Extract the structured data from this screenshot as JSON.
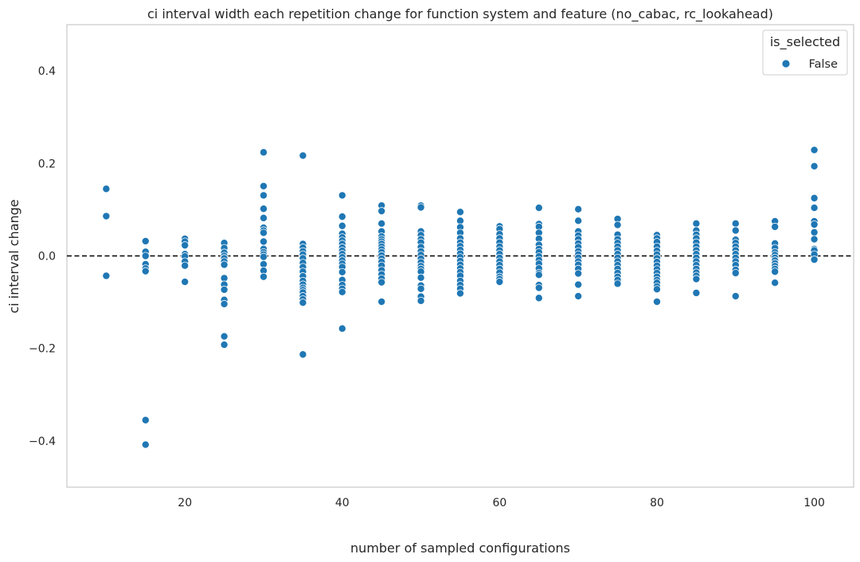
{
  "chart_data": {
    "type": "scatter",
    "title": "ci interval width each repetition change for function system and feature (no_cabac, rc_lookahead)",
    "xlabel": "number of sampled configurations",
    "ylabel": "ci interval change",
    "xlim": [
      5,
      105
    ],
    "ylim": [
      -0.5,
      0.5
    ],
    "xticks": [
      20,
      40,
      60,
      80,
      100
    ],
    "yticks": [
      -0.4,
      -0.2,
      0.0,
      0.2,
      0.4
    ],
    "xtick_labels": [
      "20",
      "40",
      "60",
      "80",
      "100"
    ],
    "ytick_labels": [
      "−0.4",
      "−0.2",
      "0.0",
      "0.2",
      "0.4"
    ],
    "grid": false,
    "reference_line": {
      "y": 0.0,
      "style": "dashed",
      "color": "#000000"
    },
    "legend": {
      "title": "is_selected",
      "placement": "top-right",
      "entries": [
        "False"
      ]
    },
    "colors": {
      "marker": "#1f77b4",
      "marker_edge": "#ffffff"
    },
    "series": [
      {
        "name": "False",
        "points": [
          [
            10,
            0.145
          ],
          [
            10,
            0.086
          ],
          [
            10,
            -0.043
          ],
          [
            15,
            0.032
          ],
          [
            15,
            0.009
          ],
          [
            15,
            0.0
          ],
          [
            15,
            -0.018
          ],
          [
            15,
            -0.027
          ],
          [
            15,
            -0.033
          ],
          [
            15,
            -0.355
          ],
          [
            15,
            -0.408
          ],
          [
            20,
            0.037
          ],
          [
            20,
            0.031
          ],
          [
            20,
            0.023
          ],
          [
            20,
            0.004
          ],
          [
            20,
            -0.001
          ],
          [
            20,
            -0.012
          ],
          [
            20,
            -0.021
          ],
          [
            20,
            -0.056
          ],
          [
            25,
            0.028
          ],
          [
            25,
            0.017
          ],
          [
            25,
            0.007
          ],
          [
            25,
            0.0
          ],
          [
            25,
            -0.005
          ],
          [
            25,
            -0.012
          ],
          [
            25,
            -0.019
          ],
          [
            25,
            -0.048
          ],
          [
            25,
            -0.062
          ],
          [
            25,
            -0.073
          ],
          [
            25,
            -0.095
          ],
          [
            25,
            -0.104
          ],
          [
            25,
            -0.174
          ],
          [
            25,
            -0.192
          ],
          [
            30,
            0.224
          ],
          [
            30,
            0.151
          ],
          [
            30,
            0.131
          ],
          [
            30,
            0.102
          ],
          [
            30,
            0.082
          ],
          [
            30,
            0.061
          ],
          [
            30,
            0.055
          ],
          [
            30,
            0.05
          ],
          [
            30,
            0.031
          ],
          [
            30,
            0.015
          ],
          [
            30,
            0.008
          ],
          [
            30,
            0.003
          ],
          [
            30,
            -0.002
          ],
          [
            30,
            -0.018
          ],
          [
            30,
            -0.032
          ],
          [
            30,
            -0.045
          ],
          [
            35,
            0.217
          ],
          [
            35,
            0.026
          ],
          [
            35,
            0.018
          ],
          [
            35,
            0.01
          ],
          [
            35,
            0.003
          ],
          [
            35,
            -0.005
          ],
          [
            35,
            -0.015
          ],
          [
            35,
            -0.024
          ],
          [
            35,
            -0.034
          ],
          [
            35,
            -0.044
          ],
          [
            35,
            -0.054
          ],
          [
            35,
            -0.062
          ],
          [
            35,
            -0.069
          ],
          [
            35,
            -0.074
          ],
          [
            35,
            -0.079
          ],
          [
            35,
            -0.087
          ],
          [
            35,
            -0.094
          ],
          [
            35,
            -0.101
          ],
          [
            35,
            -0.213
          ],
          [
            40,
            0.131
          ],
          [
            40,
            0.085
          ],
          [
            40,
            0.065
          ],
          [
            40,
            0.048
          ],
          [
            40,
            0.04
          ],
          [
            40,
            0.033
          ],
          [
            40,
            0.026
          ],
          [
            40,
            0.018
          ],
          [
            40,
            0.011
          ],
          [
            40,
            0.004
          ],
          [
            40,
            -0.003
          ],
          [
            40,
            -0.01
          ],
          [
            40,
            -0.017
          ],
          [
            40,
            -0.024
          ],
          [
            40,
            -0.035
          ],
          [
            40,
            -0.052
          ],
          [
            40,
            -0.063
          ],
          [
            40,
            -0.071
          ],
          [
            40,
            -0.078
          ],
          [
            40,
            -0.157
          ],
          [
            45,
            0.109
          ],
          [
            45,
            0.097
          ],
          [
            45,
            0.07
          ],
          [
            45,
            0.053
          ],
          [
            45,
            0.042
          ],
          [
            45,
            0.036
          ],
          [
            45,
            0.031
          ],
          [
            45,
            0.026
          ],
          [
            45,
            0.02
          ],
          [
            45,
            0.014
          ],
          [
            45,
            0.008
          ],
          [
            45,
            0.001
          ],
          [
            45,
            -0.006
          ],
          [
            45,
            -0.013
          ],
          [
            45,
            -0.021
          ],
          [
            45,
            -0.031
          ],
          [
            45,
            -0.04
          ],
          [
            45,
            -0.049
          ],
          [
            45,
            -0.057
          ],
          [
            45,
            -0.099
          ],
          [
            50,
            0.109
          ],
          [
            50,
            0.105
          ],
          [
            50,
            0.053
          ],
          [
            50,
            0.045
          ],
          [
            50,
            0.036
          ],
          [
            50,
            0.029
          ],
          [
            50,
            0.019
          ],
          [
            50,
            0.01
          ],
          [
            50,
            0.002
          ],
          [
            50,
            -0.006
          ],
          [
            50,
            -0.014
          ],
          [
            50,
            -0.022
          ],
          [
            50,
            -0.028
          ],
          [
            50,
            -0.034
          ],
          [
            50,
            -0.047
          ],
          [
            50,
            -0.064
          ],
          [
            50,
            -0.071
          ],
          [
            50,
            -0.088
          ],
          [
            50,
            -0.097
          ],
          [
            55,
            0.095
          ],
          [
            55,
            0.076
          ],
          [
            55,
            0.062
          ],
          [
            55,
            0.05
          ],
          [
            55,
            0.038
          ],
          [
            55,
            0.029
          ],
          [
            55,
            0.021
          ],
          [
            55,
            0.013
          ],
          [
            55,
            0.005
          ],
          [
            55,
            -0.003
          ],
          [
            55,
            -0.011
          ],
          [
            55,
            -0.019
          ],
          [
            55,
            -0.027
          ],
          [
            55,
            -0.035
          ],
          [
            55,
            -0.043
          ],
          [
            55,
            -0.054
          ],
          [
            55,
            -0.063
          ],
          [
            55,
            -0.071
          ],
          [
            55,
            -0.081
          ],
          [
            60,
            0.064
          ],
          [
            60,
            0.058
          ],
          [
            60,
            0.047
          ],
          [
            60,
            0.038
          ],
          [
            60,
            0.029
          ],
          [
            60,
            0.02
          ],
          [
            60,
            0.012
          ],
          [
            60,
            0.004
          ],
          [
            60,
            -0.004
          ],
          [
            60,
            -0.012
          ],
          [
            60,
            -0.02
          ],
          [
            60,
            -0.028
          ],
          [
            60,
            -0.036
          ],
          [
            60,
            -0.045
          ],
          [
            60,
            -0.05
          ],
          [
            60,
            -0.056
          ],
          [
            65,
            0.104
          ],
          [
            65,
            0.069
          ],
          [
            65,
            0.063
          ],
          [
            65,
            0.05
          ],
          [
            65,
            0.037
          ],
          [
            65,
            0.024
          ],
          [
            65,
            0.015
          ],
          [
            65,
            0.008
          ],
          [
            65,
            -0.001
          ],
          [
            65,
            -0.009
          ],
          [
            65,
            -0.017
          ],
          [
            65,
            -0.027
          ],
          [
            65,
            -0.037
          ],
          [
            65,
            -0.041
          ],
          [
            65,
            -0.063
          ],
          [
            65,
            -0.069
          ],
          [
            65,
            -0.091
          ],
          [
            70,
            0.101
          ],
          [
            70,
            0.076
          ],
          [
            70,
            0.053
          ],
          [
            70,
            0.044
          ],
          [
            70,
            0.036
          ],
          [
            70,
            0.027
          ],
          [
            70,
            0.019
          ],
          [
            70,
            0.01
          ],
          [
            70,
            0.003
          ],
          [
            70,
            -0.004
          ],
          [
            70,
            -0.012
          ],
          [
            70,
            -0.019
          ],
          [
            70,
            -0.028
          ],
          [
            70,
            -0.038
          ],
          [
            70,
            -0.062
          ],
          [
            70,
            -0.087
          ],
          [
            75,
            0.08
          ],
          [
            75,
            0.067
          ],
          [
            75,
            0.046
          ],
          [
            75,
            0.036
          ],
          [
            75,
            0.028
          ],
          [
            75,
            0.02
          ],
          [
            75,
            0.012
          ],
          [
            75,
            0.004
          ],
          [
            75,
            -0.004
          ],
          [
            75,
            -0.012
          ],
          [
            75,
            -0.02
          ],
          [
            75,
            -0.028
          ],
          [
            75,
            -0.037
          ],
          [
            75,
            -0.045
          ],
          [
            75,
            -0.052
          ],
          [
            75,
            -0.06
          ],
          [
            80,
            0.045
          ],
          [
            80,
            0.038
          ],
          [
            80,
            0.03
          ],
          [
            80,
            0.02
          ],
          [
            80,
            0.011
          ],
          [
            80,
            0.003
          ],
          [
            80,
            -0.005
          ],
          [
            80,
            -0.013
          ],
          [
            80,
            -0.021
          ],
          [
            80,
            -0.029
          ],
          [
            80,
            -0.037
          ],
          [
            80,
            -0.045
          ],
          [
            80,
            -0.052
          ],
          [
            80,
            -0.058
          ],
          [
            80,
            -0.066
          ],
          [
            80,
            -0.072
          ],
          [
            80,
            -0.099
          ],
          [
            85,
            0.07
          ],
          [
            85,
            0.055
          ],
          [
            85,
            0.046
          ],
          [
            85,
            0.038
          ],
          [
            85,
            0.029
          ],
          [
            85,
            0.02
          ],
          [
            85,
            0.012
          ],
          [
            85,
            0.004
          ],
          [
            85,
            -0.004
          ],
          [
            85,
            -0.012
          ],
          [
            85,
            -0.02
          ],
          [
            85,
            -0.028
          ],
          [
            85,
            -0.036
          ],
          [
            85,
            -0.043
          ],
          [
            85,
            -0.05
          ],
          [
            85,
            -0.08
          ],
          [
            90,
            0.07
          ],
          [
            90,
            0.055
          ],
          [
            90,
            0.035
          ],
          [
            90,
            0.028
          ],
          [
            90,
            0.02
          ],
          [
            90,
            0.012
          ],
          [
            90,
            0.004
          ],
          [
            90,
            -0.004
          ],
          [
            90,
            -0.012
          ],
          [
            90,
            -0.02
          ],
          [
            90,
            -0.03
          ],
          [
            90,
            -0.037
          ],
          [
            90,
            -0.087
          ],
          [
            95,
            0.075
          ],
          [
            95,
            0.063
          ],
          [
            95,
            0.027
          ],
          [
            95,
            0.017
          ],
          [
            95,
            0.008
          ],
          [
            95,
            0.002
          ],
          [
            95,
            -0.004
          ],
          [
            95,
            -0.01
          ],
          [
            95,
            -0.016
          ],
          [
            95,
            -0.022
          ],
          [
            95,
            -0.028
          ],
          [
            95,
            -0.034
          ],
          [
            95,
            -0.058
          ],
          [
            100,
            0.229
          ],
          [
            100,
            0.194
          ],
          [
            100,
            0.125
          ],
          [
            100,
            0.104
          ],
          [
            100,
            0.075
          ],
          [
            100,
            0.068
          ],
          [
            100,
            0.051
          ],
          [
            100,
            0.036
          ],
          [
            100,
            0.015
          ],
          [
            100,
            0.012
          ],
          [
            100,
            0.003
          ],
          [
            100,
            -0.008
          ]
        ]
      }
    ]
  }
}
